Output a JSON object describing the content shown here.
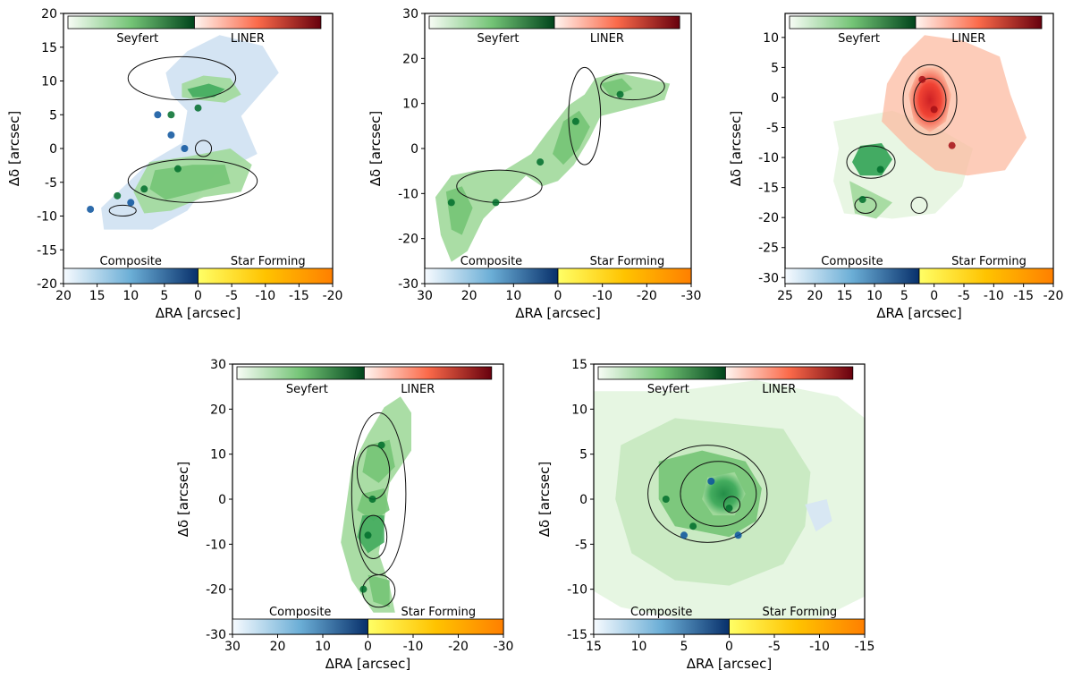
{
  "chart_data": [
    {
      "type": "heatmap",
      "xlabel": "ΔRA [arcsec]",
      "ylabel": "Δδ [arcsec]",
      "xlim": [
        20,
        -20
      ],
      "ylim": [
        -20,
        20
      ],
      "xticks": [
        20,
        15,
        10,
        5,
        0,
        -5,
        -10,
        -15,
        -20
      ],
      "xtick_labels": [
        "20",
        "15",
        "10",
        "5",
        "0",
        "-5",
        "-10",
        "-15",
        "-20"
      ],
      "yticks": [
        -20,
        -15,
        -10,
        -5,
        0,
        5,
        10,
        15,
        20
      ],
      "ytick_labels": [
        "-20",
        "-15",
        "-10",
        "-5",
        "0",
        "5",
        "10",
        "15",
        "20"
      ],
      "colorbar_labels": [
        "Seyfert",
        "LINER",
        "Composite",
        "Star Forming"
      ],
      "colors": {
        "seyfert": "#006d2c",
        "liner": "#a50f15",
        "composite": "#08519c",
        "star_forming": "#ff8c00"
      },
      "series": [
        {
          "region": "Composite",
          "values": [
            [
              6,
              5
            ],
            [
              2,
              0
            ],
            [
              10,
              -8
            ],
            [
              16,
              -9
            ],
            [
              4,
              2
            ]
          ]
        },
        {
          "region": "Seyfert",
          "values": [
            [
              0,
              6
            ],
            [
              4,
              5
            ],
            [
              8,
              -6
            ],
            [
              12,
              -7
            ],
            [
              3,
              -3
            ]
          ]
        }
      ]
    },
    {
      "type": "heatmap",
      "xlabel": "ΔRA [arcsec]",
      "ylabel": "Δδ [arcsec]",
      "xlim": [
        30,
        -30
      ],
      "ylim": [
        -30,
        30
      ],
      "xticks": [
        30,
        20,
        10,
        0,
        -10,
        -20,
        -30
      ],
      "xtick_labels": [
        "30",
        "20",
        "10",
        "0",
        "-10",
        "-20",
        "-30"
      ],
      "yticks": [
        -30,
        -20,
        -10,
        0,
        10,
        20,
        30
      ],
      "ytick_labels": [
        "-30",
        "-20",
        "-10",
        "0",
        "10",
        "20",
        "30"
      ],
      "colorbar_labels": [
        "Seyfert",
        "LINER",
        "Composite",
        "Star Forming"
      ],
      "colors": {
        "seyfert": "#006d2c",
        "liner": "#a50f15",
        "composite": "#08519c",
        "star_forming": "#ff8c00"
      },
      "series": [
        {
          "region": "Seyfert",
          "values": [
            [
              24,
              -12
            ],
            [
              14,
              -12
            ],
            [
              4,
              -3
            ],
            [
              -4,
              6
            ],
            [
              -14,
              12
            ]
          ]
        }
      ]
    },
    {
      "type": "heatmap",
      "xlabel": "ΔRA [arcsec]",
      "ylabel": "Δδ [arcsec]",
      "xlim": [
        25,
        -20
      ],
      "ylim": [
        -31,
        14
      ],
      "xticks": [
        25,
        20,
        15,
        10,
        5,
        0,
        -5,
        -10,
        -15,
        -20
      ],
      "xtick_labels": [
        "25",
        "20",
        "15",
        "10",
        "5",
        "0",
        "-5",
        "-10",
        "-15",
        "-20"
      ],
      "yticks": [
        -30,
        -25,
        -20,
        -15,
        -10,
        -5,
        0,
        5,
        10
      ],
      "ytick_labels": [
        "-30",
        "-25",
        "-20",
        "-15",
        "-10",
        "-5",
        "0",
        "5",
        "10"
      ],
      "colorbar_labels": [
        "Seyfert",
        "LINER",
        "Composite",
        "Star Forming"
      ],
      "colors": {
        "seyfert": "#006d2c",
        "liner": "#a50f15",
        "composite": "#08519c",
        "star_forming": "#ff8c00"
      },
      "series": [
        {
          "region": "LINER",
          "values": [
            [
              0,
              -2
            ],
            [
              2,
              3
            ],
            [
              -3,
              -8
            ]
          ]
        },
        {
          "region": "Seyfert",
          "values": [
            [
              9,
              -12
            ],
            [
              12,
              -17
            ]
          ]
        }
      ]
    },
    {
      "type": "heatmap",
      "xlabel": "ΔRA [arcsec]",
      "ylabel": "Δδ [arcsec]",
      "xlim": [
        30,
        -30
      ],
      "ylim": [
        -30,
        30
      ],
      "xticks": [
        30,
        20,
        10,
        0,
        -10,
        -20,
        -30
      ],
      "xtick_labels": [
        "30",
        "20",
        "10",
        "0",
        "-10",
        "-20",
        "-30"
      ],
      "yticks": [
        -30,
        -20,
        -10,
        0,
        10,
        20,
        30
      ],
      "ytick_labels": [
        "-30",
        "-20",
        "-10",
        "0",
        "10",
        "20",
        "30"
      ],
      "colorbar_labels": [
        "Seyfert",
        "LINER",
        "Composite",
        "Star Forming"
      ],
      "colors": {
        "seyfert": "#006d2c",
        "liner": "#a50f15",
        "composite": "#08519c",
        "star_forming": "#ff8c00"
      },
      "series": [
        {
          "region": "Seyfert",
          "values": [
            [
              -3,
              12
            ],
            [
              -1,
              0
            ],
            [
              0,
              -8
            ],
            [
              1,
              -20
            ]
          ]
        }
      ]
    },
    {
      "type": "heatmap",
      "xlabel": "ΔRA [arcsec]",
      "ylabel": "Δδ [arcsec]",
      "xlim": [
        15,
        -15
      ],
      "ylim": [
        -15,
        15
      ],
      "xticks": [
        15,
        10,
        5,
        0,
        -5,
        -10,
        -15
      ],
      "xtick_labels": [
        "15",
        "10",
        "5",
        "0",
        "-5",
        "-10",
        "-15"
      ],
      "yticks": [
        -15,
        -10,
        -5,
        0,
        5,
        10,
        15
      ],
      "ytick_labels": [
        "-15",
        "-10",
        "-5",
        "0",
        "5",
        "10",
        "15"
      ],
      "colorbar_labels": [
        "Seyfert",
        "LINER",
        "Composite",
        "Star Forming"
      ],
      "colors": {
        "seyfert": "#006d2c",
        "liner": "#a50f15",
        "composite": "#08519c",
        "star_forming": "#ff8c00"
      },
      "series": [
        {
          "region": "Seyfert",
          "values": [
            [
              7,
              0
            ],
            [
              0,
              -1
            ],
            [
              4,
              -3
            ]
          ]
        },
        {
          "region": "Composite",
          "values": [
            [
              2,
              2
            ],
            [
              -1,
              -4
            ],
            [
              5,
              -4
            ]
          ]
        }
      ]
    }
  ]
}
